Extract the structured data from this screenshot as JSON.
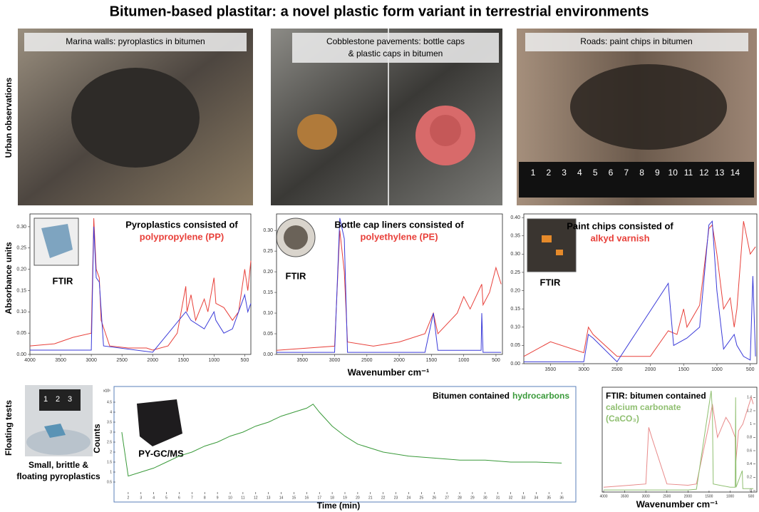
{
  "title": "Bitumen-based plastitar: a novel plastic form variant in terrestrial environments",
  "row_labels": [
    "Urban observations",
    "Absorbance units",
    "Floating tests"
  ],
  "photos": [
    {
      "caption": [
        "Marina walls: pyroplastics in bitumen"
      ]
    },
    {
      "caption": [
        "Cobblestone pavements: bottle caps",
        "& plastic caps in bitumen"
      ]
    },
    {
      "caption": [
        "Roads: paint chips in bitumen"
      ],
      "ruler_ticks": [
        1,
        2,
        3,
        4,
        5,
        6,
        7,
        8,
        9,
        10,
        11,
        12,
        13,
        14
      ]
    }
  ],
  "spectra": [
    {
      "caption": "Pyroplastics consisted of",
      "highlight": "polypropylene (PP)",
      "inset_label": "FTIR",
      "xlim": [
        4000,
        400
      ],
      "ylim": [
        0,
        0.33
      ],
      "xticks": [
        4000,
        3500,
        3000,
        2500,
        2000,
        1500,
        1000,
        500
      ],
      "yticks": [
        {
          "value": 0,
          "label": "0.00"
        },
        {
          "value": 0.05,
          "label": "0.05"
        },
        {
          "value": 0.1,
          "label": "0.10"
        },
        {
          "value": 0.15,
          "label": "0.15"
        },
        {
          "value": 0.2,
          "label": "0.20"
        },
        {
          "value": 0.25,
          "label": "0.25"
        },
        {
          "value": 0.3,
          "label": "0.30"
        }
      ],
      "series": [
        {
          "color": "#e8403a",
          "x": [
            4000,
            3600,
            3300,
            3000,
            2960,
            2920,
            2870,
            2840,
            2700,
            2400,
            2100,
            2000,
            1750,
            1600,
            1460,
            1440,
            1375,
            1300,
            1160,
            1100,
            1000,
            970,
            840,
            700,
            600,
            500,
            450,
            400
          ],
          "values": [
            0.02,
            0.025,
            0.04,
            0.05,
            0.32,
            0.2,
            0.18,
            0.08,
            0.02,
            0.015,
            0.015,
            0.01,
            0.02,
            0.05,
            0.16,
            0.1,
            0.14,
            0.08,
            0.13,
            0.1,
            0.18,
            0.12,
            0.11,
            0.08,
            0.1,
            0.2,
            0.15,
            0.22
          ]
        },
        {
          "color": "#3a3ad8",
          "x": [
            4000,
            3000,
            2960,
            2920,
            2870,
            2800,
            2000,
            1460,
            1375,
            1160,
            1000,
            970,
            840,
            700,
            500,
            450,
            400
          ],
          "values": [
            0.01,
            0.01,
            0.3,
            0.18,
            0.17,
            0.02,
            0.005,
            0.1,
            0.08,
            0.06,
            0.1,
            0.08,
            0.05,
            0.06,
            0.14,
            0.1,
            0.12
          ]
        }
      ]
    },
    {
      "caption": "Bottle cap liners consisted of",
      "highlight": "polyethylene (PE)",
      "inset_label": "FTIR",
      "xlim": [
        3900,
        400
      ],
      "ylim": [
        0,
        0.34
      ],
      "xticks": [
        3500,
        3000,
        2500,
        2000,
        1500,
        1000,
        500
      ],
      "yticks": [
        {
          "value": 0,
          "label": "0.00"
        },
        {
          "value": 0.05,
          "label": "0.05"
        },
        {
          "value": 0.1,
          "label": "0.10"
        },
        {
          "value": 0.15,
          "label": "0.15"
        },
        {
          "value": 0.2,
          "label": "0.20"
        },
        {
          "value": 0.25,
          "label": "0.25"
        },
        {
          "value": 0.3,
          "label": "0.30"
        }
      ],
      "series": [
        {
          "color": "#e8403a",
          "x": [
            3900,
            3000,
            2920,
            2850,
            2800,
            2400,
            2000,
            1600,
            1470,
            1400,
            1100,
            1000,
            900,
            720,
            700,
            600,
            500,
            420
          ],
          "values": [
            0.01,
            0.02,
            0.3,
            0.2,
            0.03,
            0.02,
            0.03,
            0.05,
            0.1,
            0.05,
            0.1,
            0.14,
            0.11,
            0.17,
            0.12,
            0.15,
            0.21,
            0.17
          ]
        },
        {
          "color": "#3a3ad8",
          "x": [
            3900,
            3000,
            2920,
            2850,
            2800,
            1600,
            1470,
            1400,
            730,
            720,
            700,
            500,
            420
          ],
          "values": [
            0.005,
            0.005,
            0.33,
            0.28,
            0.005,
            0.005,
            0.1,
            0.01,
            0.01,
            0.1,
            0.005,
            0.005,
            0.005
          ]
        }
      ]
    },
    {
      "caption": "Paint chips consisted of",
      "highlight": "alkyd varnish",
      "inset_label": "FTIR",
      "xlim": [
        3900,
        400
      ],
      "ylim": [
        0,
        0.41
      ],
      "xticks": [
        3500,
        3000,
        2500,
        2000,
        1500,
        1000,
        500
      ],
      "yticks": [
        {
          "value": 0,
          "label": "0.00"
        },
        {
          "value": 0.05,
          "label": "0.05"
        },
        {
          "value": 0.1,
          "label": "0.10"
        },
        {
          "value": 0.15,
          "label": "0.15"
        },
        {
          "value": 0.2,
          "label": "0.20"
        },
        {
          "value": 0.25,
          "label": "0.25"
        },
        {
          "value": 0.3,
          "label": "0.30"
        },
        {
          "value": 0.35,
          "label": "0.35"
        },
        {
          "value": 0.4,
          "label": "0.40"
        }
      ],
      "series": [
        {
          "color": "#e8403a",
          "x": [
            3900,
            3500,
            3000,
            2930,
            2860,
            2500,
            2000,
            1730,
            1600,
            1500,
            1450,
            1260,
            1120,
            1070,
            1000,
            900,
            800,
            740,
            700,
            600,
            500,
            420
          ],
          "values": [
            0.02,
            0.06,
            0.03,
            0.1,
            0.08,
            0.02,
            0.02,
            0.09,
            0.08,
            0.15,
            0.1,
            0.16,
            0.37,
            0.38,
            0.3,
            0.15,
            0.18,
            0.1,
            0.15,
            0.39,
            0.3,
            0.32
          ]
        },
        {
          "color": "#3a3ad8",
          "x": [
            3900,
            3000,
            2930,
            2860,
            2500,
            1730,
            1650,
            1450,
            1260,
            1120,
            1070,
            1000,
            900,
            740,
            700,
            600,
            500,
            460,
            420
          ],
          "values": [
            0.005,
            0.005,
            0.08,
            0.07,
            0.005,
            0.22,
            0.05,
            0.07,
            0.1,
            0.38,
            0.39,
            0.2,
            0.04,
            0.08,
            0.05,
            0.02,
            0.01,
            0.24,
            0.02
          ]
        }
      ]
    }
  ],
  "x_axis_label": "Wavenumber cm⁻¹",
  "floating": {
    "ruler_ticks": [
      1,
      2,
      3
    ],
    "caption": [
      "Small, brittle &",
      "floating pyroplastics"
    ]
  },
  "gcms": {
    "caption": "Bitumen contained",
    "highlight": "hydrocarbons",
    "inset_label": "PY-GC/MS",
    "y_axis_label": "Counts",
    "x_axis_label": "Time (min)",
    "y_scale_label": "x10⁵",
    "xlim": [
      1,
      37
    ],
    "ylim": [
      0,
      5
    ],
    "xticks": [
      2,
      3,
      4,
      5,
      6,
      7,
      8,
      9,
      10,
      11,
      12,
      13,
      14,
      15,
      16,
      17,
      18,
      19,
      20,
      21,
      22,
      23,
      24,
      25,
      26,
      27,
      28,
      29,
      30,
      31,
      32,
      33,
      34,
      35,
      36
    ],
    "yticks": [
      0.5,
      1,
      1.5,
      2,
      2.5,
      3,
      3.5,
      4,
      4.5
    ],
    "series": [
      {
        "color": "#3a9a3a",
        "x": [
          1.5,
          2,
          3,
          4,
          5,
          6,
          7,
          8,
          9,
          10,
          11,
          12,
          13,
          14,
          15,
          16,
          16.5,
          17,
          18,
          19,
          20,
          22,
          24,
          26,
          28,
          30,
          32,
          34,
          36
        ],
        "values": [
          3,
          0.8,
          1.0,
          1.2,
          1.5,
          1.8,
          2.0,
          2.3,
          2.5,
          2.8,
          3.0,
          3.3,
          3.5,
          3.8,
          4.0,
          4.2,
          4.4,
          4.0,
          3.3,
          2.8,
          2.4,
          2.0,
          1.8,
          1.7,
          1.6,
          1.6,
          1.5,
          1.5,
          1.45
        ]
      }
    ]
  },
  "ftir_bitumen": {
    "caption": "FTIR: bitumen contained",
    "highlight": [
      "calcium carbonate",
      "(CaCO₃)"
    ],
    "x_axis_label": "Wavenumber cm⁻¹",
    "xlim": [
      4000,
      400
    ],
    "ylim": [
      0,
      1.5
    ],
    "xticks": [
      4000,
      3500,
      3000,
      2500,
      2000,
      1500,
      1000,
      500
    ],
    "yticks": [
      0,
      0.2,
      0.4,
      0.6,
      0.8,
      1,
      1.2,
      1.4
    ],
    "series": [
      {
        "color": "#e88a8a",
        "x": [
          4000,
          3000,
          2930,
          2860,
          2500,
          2000,
          1800,
          1500,
          1420,
          1300,
          1100,
          1000,
          880,
          870,
          800,
          700,
          600,
          500,
          450
        ],
        "values": [
          0.05,
          0.1,
          0.95,
          0.8,
          0.1,
          0.08,
          0.1,
          1.0,
          1.3,
          0.8,
          1.1,
          1.0,
          0.8,
          0.4,
          0.9,
          1.0,
          1.2,
          1.4,
          1.3
        ]
      },
      {
        "color": "#8fbf70",
        "x": [
          4000,
          2000,
          1800,
          1450,
          1420,
          1400,
          1000,
          880,
          870,
          860,
          712,
          700,
          500,
          450
        ],
        "values": [
          0.01,
          0.01,
          0.02,
          1.5,
          1.2,
          0.1,
          0.05,
          0.05,
          1.4,
          0.05,
          0.3,
          0.03,
          0.03,
          0.03
        ]
      }
    ]
  }
}
